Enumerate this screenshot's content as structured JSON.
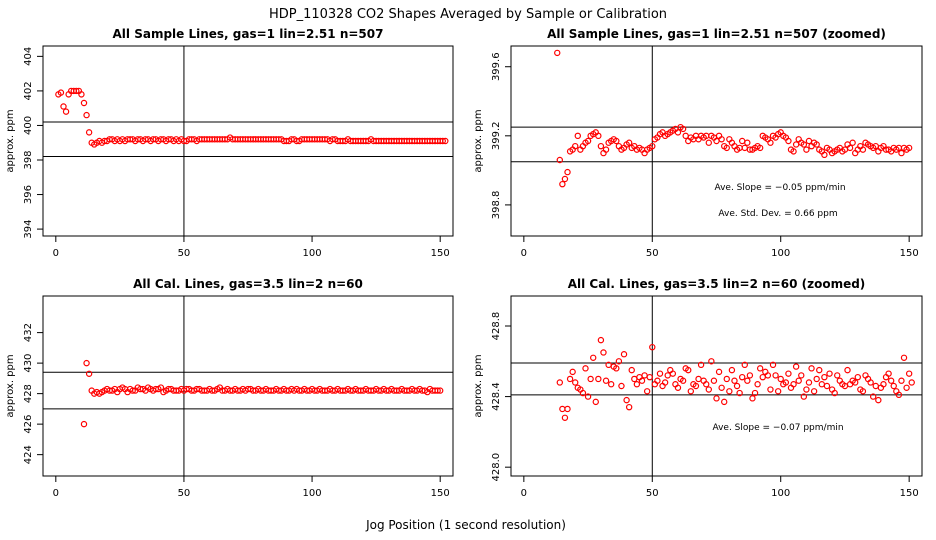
{
  "figure": {
    "title": "HDP_110328  CO2 Shapes Averaged by Sample or Calibration",
    "xlabel": "Jog Position (1 second resolution)",
    "point_color": "#ff0000",
    "line_color": "#000000"
  },
  "chart_data": [
    {
      "type": "scatter",
      "title": "All Sample Lines, gas=1 lin=2.51 n=507",
      "ylabel": "approx. ppm",
      "xlim": [
        -5,
        155
      ],
      "ylim": [
        393.6,
        404.6
      ],
      "xticks": [
        0,
        50,
        100,
        150
      ],
      "yticks": [
        394,
        396,
        398,
        400,
        402,
        404
      ],
      "hlines": [
        398.2,
        400.2
      ],
      "vline": 50,
      "annotations": [],
      "x_start": 1,
      "y": [
        401.8,
        401.9,
        401.1,
        400.8,
        401.8,
        402.0,
        402.0,
        402.0,
        402.0,
        401.8,
        401.3,
        400.6,
        399.6,
        399.0,
        398.9,
        399.0,
        399.1,
        399.0,
        399.1,
        399.1,
        399.2,
        399.2,
        399.1,
        399.2,
        399.1,
        399.2,
        399.1,
        399.2,
        399.2,
        399.2,
        399.1,
        399.2,
        399.2,
        399.1,
        399.2,
        399.2,
        399.1,
        399.2,
        399.2,
        399.1,
        399.2,
        399.2,
        399.1,
        399.2,
        399.2,
        399.1,
        399.2,
        399.1,
        399.2,
        399.1,
        399.1,
        399.2,
        399.2,
        399.2,
        399.1,
        399.2,
        399.2,
        399.2,
        399.2,
        399.2,
        399.2,
        399.2,
        399.2,
        399.2,
        399.2,
        399.2,
        399.2,
        399.3,
        399.2,
        399.2,
        399.2,
        399.2,
        399.2,
        399.2,
        399.2,
        399.2,
        399.2,
        399.2,
        399.2,
        399.2,
        399.2,
        399.2,
        399.2,
        399.2,
        399.2,
        399.2,
        399.2,
        399.2,
        399.1,
        399.1,
        399.1,
        399.2,
        399.2,
        399.1,
        399.1,
        399.2,
        399.2,
        399.2,
        399.2,
        399.2,
        399.2,
        399.2,
        399.2,
        399.2,
        399.2,
        399.2,
        399.1,
        399.2,
        399.2,
        399.1,
        399.1,
        399.1,
        399.1,
        399.2,
        399.1,
        399.1,
        399.1,
        399.1,
        399.1,
        399.1,
        399.1,
        399.1,
        399.2,
        399.1,
        399.1,
        399.1,
        399.1,
        399.1,
        399.1,
        399.1,
        399.1,
        399.1,
        399.1,
        399.1,
        399.1,
        399.1,
        399.1,
        399.1,
        399.1,
        399.1,
        399.1,
        399.1,
        399.1,
        399.1,
        399.1,
        399.1,
        399.1,
        399.1,
        399.1,
        399.1,
        399.1,
        399.1
      ]
    },
    {
      "type": "scatter",
      "title": "All Sample Lines, gas=1 lin=2.51 n=507 (zoomed)",
      "ylabel": "approx. ppm",
      "xlim": [
        -5,
        155
      ],
      "ylim": [
        398.62,
        399.72
      ],
      "xticks": [
        0,
        50,
        100,
        150
      ],
      "yticks": [
        398.8,
        399.2,
        399.6
      ],
      "hlines": [
        399.05,
        399.25
      ],
      "vline": 50,
      "annotations": [
        "Ave. Slope =  −0.05  ppm/min",
        "Ave. Std. Dev. =  0.66  ppm"
      ],
      "x_start": 13,
      "y": [
        399.68,
        399.06,
        398.92,
        398.95,
        398.99,
        399.11,
        399.12,
        399.14,
        399.2,
        399.12,
        399.14,
        399.16,
        399.17,
        399.2,
        399.21,
        399.22,
        399.2,
        399.14,
        399.1,
        399.12,
        399.16,
        399.17,
        399.18,
        399.17,
        399.14,
        399.12,
        399.13,
        399.15,
        399.16,
        399.13,
        399.14,
        399.12,
        399.13,
        399.12,
        399.1,
        399.12,
        399.13,
        399.14,
        399.18,
        399.19,
        399.21,
        399.22,
        399.2,
        399.21,
        399.22,
        399.23,
        399.24,
        399.22,
        399.25,
        399.24,
        399.2,
        399.17,
        399.19,
        399.18,
        399.2,
        399.18,
        399.2,
        399.19,
        399.2,
        399.16,
        399.2,
        399.19,
        399.17,
        399.2,
        399.18,
        399.14,
        399.13,
        399.18,
        399.16,
        399.14,
        399.12,
        399.13,
        399.17,
        399.13,
        399.16,
        399.12,
        399.12,
        399.13,
        399.14,
        399.13,
        399.2,
        399.19,
        399.18,
        399.16,
        399.2,
        399.19,
        399.21,
        399.22,
        399.2,
        399.19,
        399.17,
        399.12,
        399.11,
        399.15,
        399.18,
        399.16,
        399.15,
        399.12,
        399.17,
        399.14,
        399.16,
        399.15,
        399.12,
        399.11,
        399.09,
        399.13,
        399.12,
        399.1,
        399.11,
        399.12,
        399.13,
        399.11,
        399.12,
        399.15,
        399.13,
        399.16,
        399.1,
        399.12,
        399.14,
        399.12,
        399.16,
        399.15,
        399.14,
        399.13,
        399.14,
        399.11,
        399.13,
        399.14,
        399.12,
        399.12,
        399.11,
        399.13,
        399.12,
        399.13,
        399.1,
        399.13,
        399.12,
        399.13
      ]
    },
    {
      "type": "scatter",
      "title": "All Cal. Lines, gas=3.5 lin=2 n=60",
      "ylabel": "approx. ppm",
      "xlim": [
        -5,
        155
      ],
      "ylim": [
        422.6,
        434.4
      ],
      "xticks": [
        0,
        50,
        100,
        150
      ],
      "yticks": [
        424,
        426,
        428,
        430,
        432
      ],
      "hlines": [
        427.0,
        429.4
      ],
      "vline": 50,
      "annotations": [],
      "x_start": 11,
      "y": [
        426.0,
        430.0,
        429.3,
        428.2,
        428.0,
        428.1,
        428.0,
        428.1,
        428.2,
        428.3,
        428.2,
        428.2,
        428.3,
        428.1,
        428.3,
        428.4,
        428.3,
        428.1,
        428.3,
        428.2,
        428.2,
        428.4,
        428.3,
        428.3,
        428.2,
        428.4,
        428.3,
        428.2,
        428.3,
        428.3,
        428.4,
        428.1,
        428.2,
        428.3,
        428.3,
        428.2,
        428.2,
        428.2,
        428.3,
        428.2,
        428.3,
        428.3,
        428.2,
        428.2,
        428.3,
        428.3,
        428.2,
        428.2,
        428.2,
        428.3,
        428.2,
        428.2,
        428.3,
        428.4,
        428.2,
        428.2,
        428.3,
        428.2,
        428.2,
        428.3,
        428.2,
        428.2,
        428.3,
        428.2,
        428.3,
        428.3,
        428.2,
        428.2,
        428.3,
        428.2,
        428.2,
        428.3,
        428.2,
        428.2,
        428.2,
        428.3,
        428.2,
        428.2,
        428.3,
        428.2,
        428.2,
        428.3,
        428.2,
        428.3,
        428.2,
        428.2,
        428.3,
        428.2,
        428.2,
        428.3,
        428.2,
        428.2,
        428.3,
        428.2,
        428.2,
        428.2,
        428.3,
        428.2,
        428.2,
        428.3,
        428.2,
        428.2,
        428.2,
        428.3,
        428.2,
        428.2,
        428.3,
        428.2,
        428.2,
        428.2,
        428.3,
        428.2,
        428.2,
        428.2,
        428.3,
        428.2,
        428.2,
        428.3,
        428.2,
        428.2,
        428.3,
        428.2,
        428.2,
        428.2,
        428.3,
        428.2,
        428.2,
        428.2,
        428.3,
        428.2,
        428.2,
        428.3,
        428.2,
        428.2,
        428.1,
        428.3,
        428.2,
        428.2,
        428.2,
        428.2
      ]
    },
    {
      "type": "scatter",
      "title": "All Cal. Lines, gas=3.5 lin=2 n=60 (zoomed)",
      "ylabel": "approx. ppm",
      "xlim": [
        -5,
        155
      ],
      "ylim": [
        427.95,
        428.97
      ],
      "xticks": [
        0,
        50,
        100,
        150
      ],
      "yticks": [
        428.0,
        428.4,
        428.8
      ],
      "hlines": [
        428.41,
        428.59
      ],
      "vline": 50,
      "annotations": [
        "Ave. Slope =  −0.07  ppm/min"
      ],
      "x_start": 14,
      "y": [
        428.48,
        428.33,
        428.28,
        428.33,
        428.5,
        428.54,
        428.48,
        428.45,
        428.44,
        428.42,
        428.56,
        428.4,
        428.5,
        428.62,
        428.37,
        428.5,
        428.72,
        428.65,
        428.49,
        428.58,
        428.47,
        428.57,
        428.56,
        428.6,
        428.46,
        428.64,
        428.38,
        428.34,
        428.55,
        428.5,
        428.47,
        428.51,
        428.49,
        428.52,
        428.43,
        428.51,
        428.68,
        428.47,
        428.49,
        428.53,
        428.46,
        428.48,
        428.52,
        428.55,
        428.53,
        428.47,
        428.45,
        428.5,
        428.49,
        428.56,
        428.55,
        428.43,
        428.47,
        428.46,
        428.5,
        428.58,
        428.49,
        428.47,
        428.44,
        428.6,
        428.49,
        428.39,
        428.54,
        428.45,
        428.37,
        428.5,
        428.43,
        428.55,
        428.49,
        428.46,
        428.42,
        428.51,
        428.58,
        428.49,
        428.52,
        428.39,
        428.42,
        428.47,
        428.56,
        428.51,
        428.54,
        428.52,
        428.44,
        428.58,
        428.52,
        428.43,
        428.5,
        428.47,
        428.48,
        428.53,
        428.45,
        428.47,
        428.57,
        428.49,
        428.52,
        428.4,
        428.44,
        428.48,
        428.56,
        428.43,
        428.5,
        428.55,
        428.47,
        428.51,
        428.46,
        428.53,
        428.44,
        428.42,
        428.52,
        428.49,
        428.47,
        428.46,
        428.55,
        428.47,
        428.49,
        428.48,
        428.51,
        428.44,
        428.43,
        428.52,
        428.5,
        428.48,
        428.4,
        428.46,
        428.38,
        428.45,
        428.47,
        428.51,
        428.53,
        428.49,
        428.46,
        428.43,
        428.41,
        428.49,
        428.62,
        428.45,
        428.53,
        428.48
      ]
    }
  ]
}
